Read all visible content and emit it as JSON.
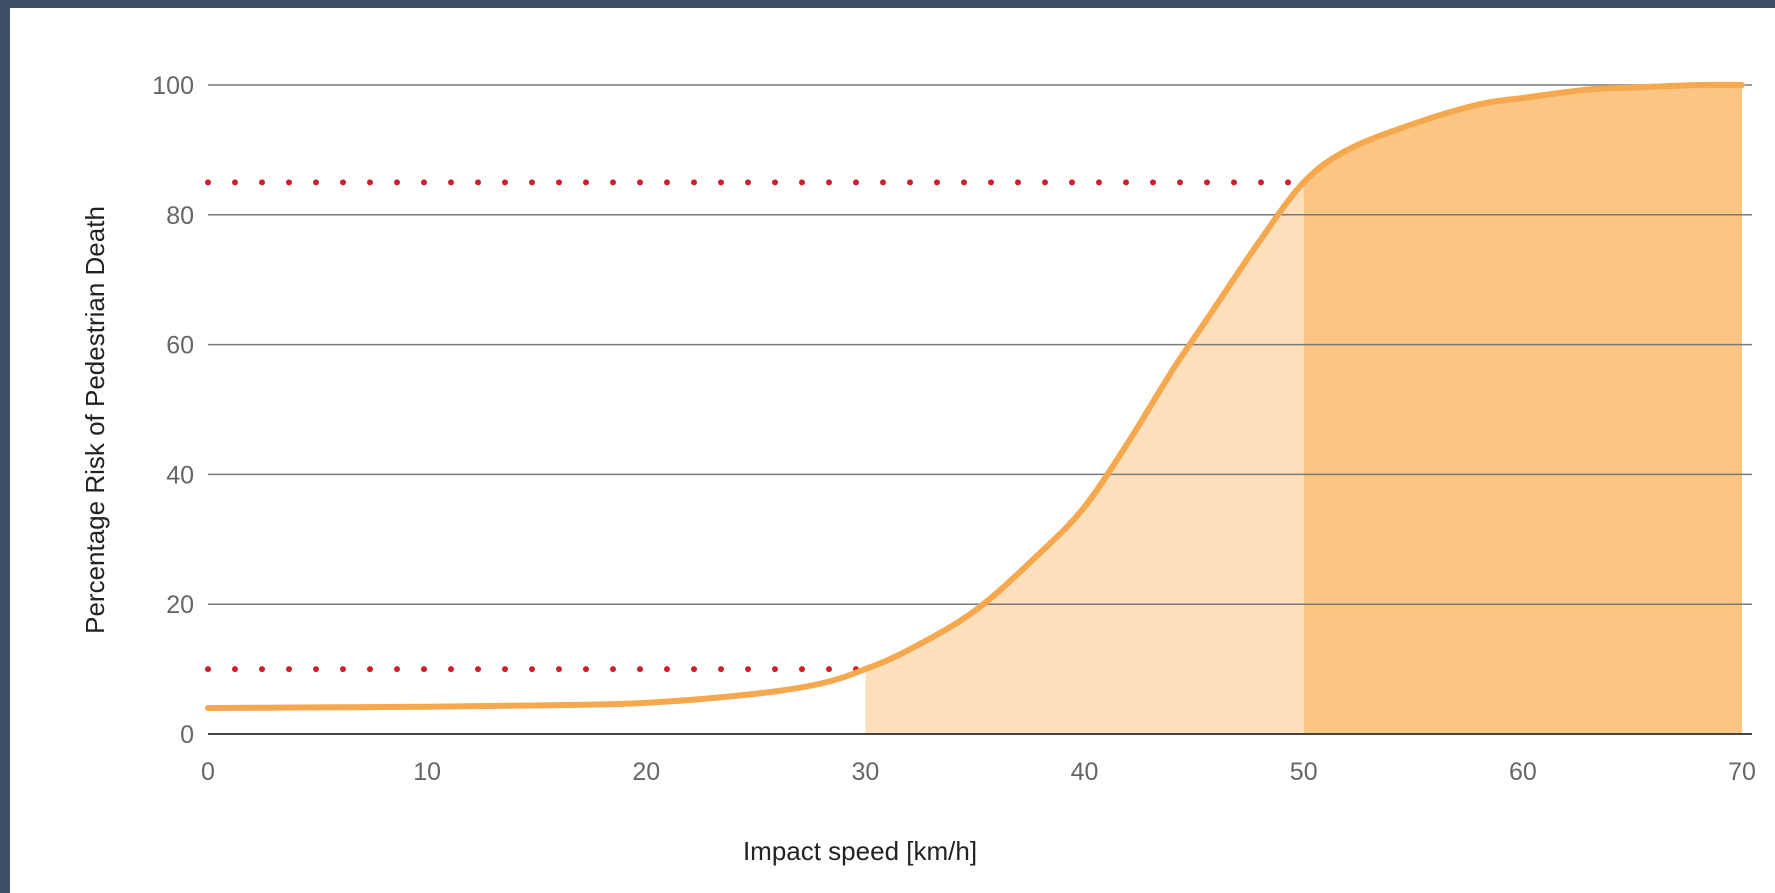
{
  "chart_data": {
    "type": "area",
    "title": "",
    "xlabel": "Impact speed [km/h]",
    "ylabel": "Percentage Risk of Pedestrian Death",
    "xlim": [
      0,
      70
    ],
    "ylim": [
      0,
      100
    ],
    "x_ticks": [
      "0",
      "10",
      "20",
      "30",
      "40",
      "50",
      "60",
      "70"
    ],
    "y_ticks": [
      "0",
      "20",
      "40",
      "60",
      "80",
      "100"
    ],
    "grid": "horizontal",
    "series": [
      {
        "x": [
          0,
          5,
          10,
          15,
          20,
          25,
          28,
          30,
          32,
          35,
          38,
          40,
          42,
          44,
          45,
          46,
          48,
          50,
          52,
          55,
          58,
          60,
          63,
          65,
          68,
          70
        ],
        "y": [
          4,
          4.1,
          4.2,
          4.4,
          4.8,
          6.2,
          7.8,
          10,
          13,
          19,
          28,
          35,
          45,
          56,
          61,
          66,
          76,
          85,
          90,
          94,
          97,
          98,
          99.3,
          99.6,
          100,
          100
        ]
      }
    ],
    "shaded_regions": [
      {
        "x_range": [
          30,
          50
        ],
        "color": "#fddfbc"
      },
      {
        "x_range": [
          50,
          70
        ],
        "color": "#fbc584"
      }
    ],
    "reference_lines": [
      {
        "y": 10,
        "x_range": [
          0,
          30
        ],
        "style": "dotted",
        "color": "#cc1f2b"
      },
      {
        "y": 85,
        "x_range": [
          0,
          50
        ],
        "style": "dotted",
        "color": "#cc1f2b"
      }
    ],
    "line_color": "#f5a84e"
  }
}
